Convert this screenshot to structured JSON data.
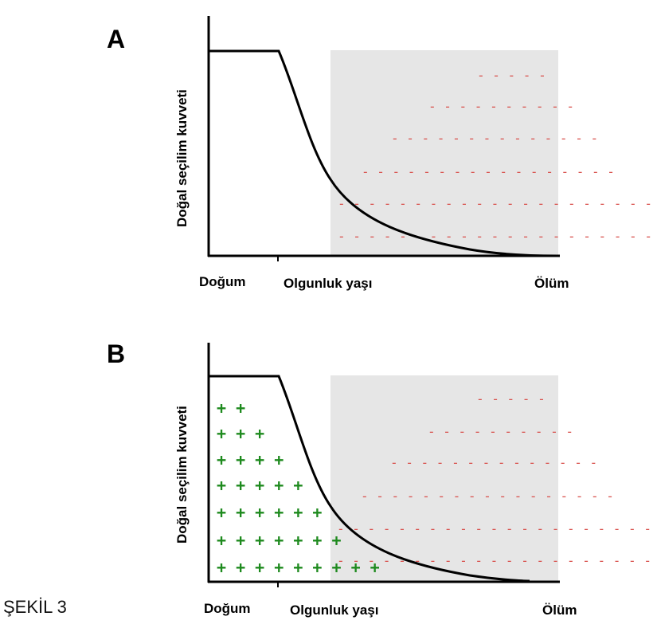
{
  "figure": {
    "caption": "ŞEKİL 3",
    "colors": {
      "shade": "#e6e6e6",
      "minus": "#d9534f",
      "plus": "#1e8a1e",
      "curve": "#000000"
    },
    "panels": [
      {
        "letter": "A",
        "ylabel": "Doğal seçilim kuvveti",
        "x_labels": {
          "birth": "Doğum",
          "maturity": "Olgunluk yaşı",
          "death": "Ölüm"
        },
        "minus_rows": [
          "- - - - -",
          "- - - - - - - - - -",
          "- - - - - - - - - - - - - -",
          "- - - - - - - - - - - - - - - - -",
          "- - - - - - - - - - - - - - - - - - - - -",
          "- - - - - - - - - - - - - - - - - - - - -"
        ],
        "plus_rows": []
      },
      {
        "letter": "B",
        "ylabel": "Doğal seçilim kuvveti",
        "x_labels": {
          "birth": "Doğum",
          "maturity": "Olgunluk yaşı",
          "death": "Ölüm"
        },
        "minus_rows": [
          "- - - - -",
          "- - - - - - - - - -",
          "- - - - - - - - - - - - - -",
          "- - - - - - - - - - - - - - - - -",
          "- - - - - - - - - - - - - - - - - - - - -",
          "- - - - - - - - - - - - - - - - - - - - -"
        ],
        "plus_rows": [
          "+ +",
          "+ + +",
          "+ + + +",
          "+ + + + +",
          "+ + + + + +",
          "+ + + + + + +",
          "+ + + + + + + + +"
        ]
      }
    ]
  }
}
